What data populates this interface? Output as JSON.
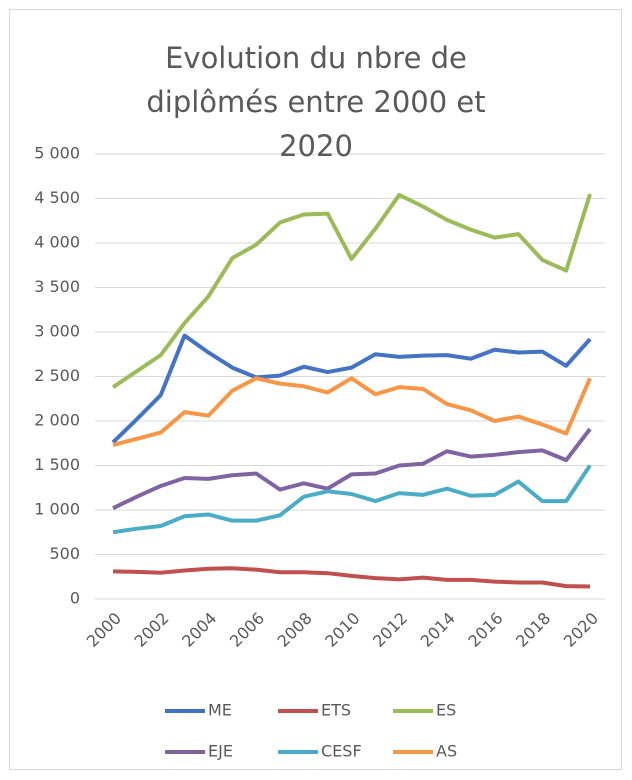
{
  "chart_data": {
    "type": "line",
    "title": "Evolution du nbre de diplômés entre 2000 et 2020",
    "x": [
      2000,
      2001,
      2002,
      2003,
      2004,
      2005,
      2006,
      2007,
      2008,
      2009,
      2010,
      2011,
      2012,
      2013,
      2014,
      2015,
      2016,
      2017,
      2018,
      2019,
      2020
    ],
    "xlim": [
      2000,
      2020
    ],
    "xticks": [
      2000,
      2002,
      2004,
      2006,
      2008,
      2010,
      2012,
      2014,
      2016,
      2018,
      2020
    ],
    "ylim": [
      0,
      5000
    ],
    "yticks": [
      0,
      500,
      {
        "value": 1000,
        "label": "1 000"
      },
      {
        "value": 1500,
        "label": "1 500"
      },
      {
        "value": 2000,
        "label": "2 000"
      },
      {
        "value": 2500,
        "label": "2 500"
      },
      {
        "value": 3000,
        "label": "3 000"
      },
      {
        "value": 3500,
        "label": "3 500"
      },
      {
        "value": 4000,
        "label": "4 000"
      },
      {
        "value": 4500,
        "label": "4 500"
      },
      {
        "value": 5000,
        "label": "5 000"
      }
    ],
    "grid": true,
    "legend": "bottom",
    "series": [
      {
        "name": "ME",
        "color": "#4472c4",
        "values": [
          1760,
          2020,
          2290,
          2960,
          2770,
          2600,
          2490,
          2510,
          2610,
          2550,
          2600,
          2750,
          2720,
          2735,
          2740,
          2700,
          2800,
          2770,
          2780,
          2620,
          2920
        ]
      },
      {
        "name": "ETS",
        "color": "#c0504d",
        "values": [
          310,
          305,
          295,
          320,
          340,
          345,
          330,
          300,
          300,
          290,
          260,
          235,
          220,
          240,
          215,
          215,
          195,
          185,
          185,
          145,
          140
        ]
      },
      {
        "name": "ES",
        "color": "#9bbb59",
        "values": [
          2380,
          2560,
          2740,
          3100,
          3400,
          3830,
          3980,
          4230,
          4320,
          4330,
          3820,
          4160,
          4540,
          4410,
          4260,
          4150,
          4060,
          4100,
          3810,
          3690,
          4550
        ]
      },
      {
        "name": "EJE",
        "color": "#8064a2",
        "values": [
          1020,
          1150,
          1270,
          1360,
          1350,
          1390,
          1410,
          1230,
          1300,
          1240,
          1400,
          1410,
          1500,
          1520,
          1660,
          1600,
          1620,
          1650,
          1670,
          1560,
          1910
        ]
      },
      {
        "name": "CESF",
        "color": "#4bacc6",
        "values": [
          750,
          790,
          820,
          930,
          950,
          880,
          880,
          940,
          1150,
          1210,
          1180,
          1100,
          1190,
          1170,
          1240,
          1160,
          1170,
          1320,
          1100,
          1100,
          1500
        ]
      },
      {
        "name": "AS",
        "color": "#f79646",
        "values": [
          1730,
          1800,
          1870,
          2100,
          2060,
          2340,
          2480,
          2420,
          2390,
          2320,
          2480,
          2300,
          2380,
          2360,
          2190,
          2120,
          2000,
          2050,
          1960,
          1860,
          2480
        ]
      }
    ]
  }
}
